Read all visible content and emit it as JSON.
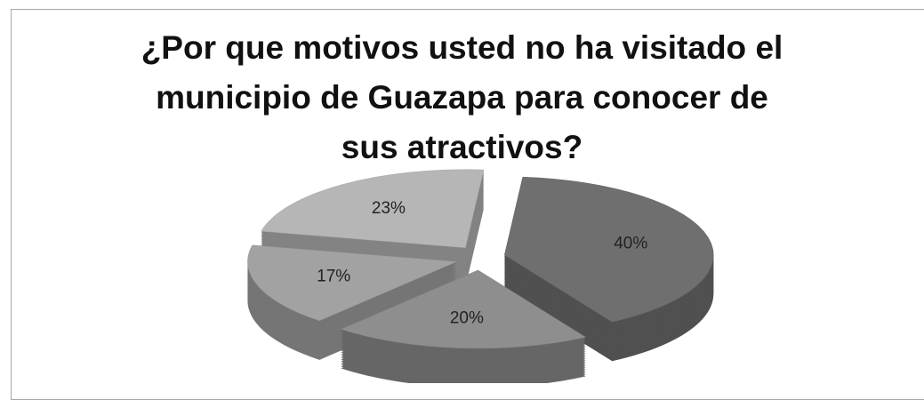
{
  "chart_data": {
    "type": "pie",
    "title": "¿Por que motivos usted no ha visitado el municipio de Guazapa para conocer de sus atractivos?",
    "values": [
      40,
      20,
      17,
      23
    ],
    "value_labels": [
      "40%",
      "20%",
      "17%",
      "23%"
    ],
    "colors": [
      "#6f6f6f",
      "#8e8e8e",
      "#a2a2a2",
      "#b6b6b6"
    ]
  }
}
